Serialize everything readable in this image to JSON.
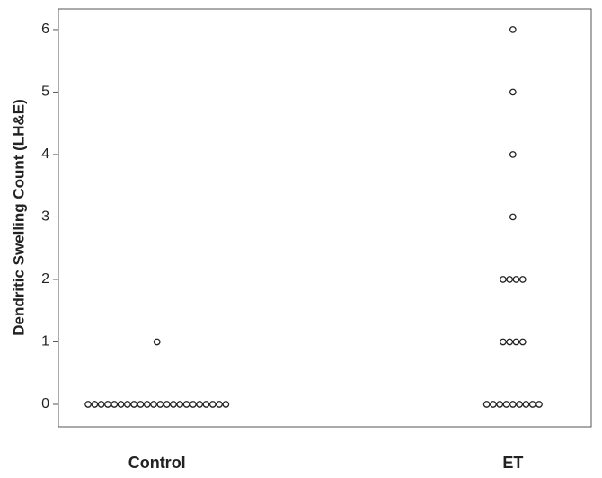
{
  "chart_data": {
    "type": "dot",
    "y_label": "Dendritic Swelling Count (LH&E)",
    "categories": [
      "Control",
      "ET"
    ],
    "values": [
      [
        0,
        0,
        0,
        0,
        0,
        0,
        0,
        0,
        0,
        0,
        0,
        0,
        0,
        0,
        0,
        0,
        0,
        0,
        0,
        0,
        0,
        0,
        1
      ],
      [
        0,
        0,
        0,
        0,
        0,
        0,
        0,
        0,
        0,
        1,
        1,
        1,
        1,
        2,
        2,
        2,
        2,
        3,
        4,
        5,
        6
      ]
    ],
    "ylim": [
      -0.36,
      6.33
    ],
    "yticks": [
      0,
      1,
      2,
      3,
      4,
      5,
      6
    ],
    "grid": false
  }
}
